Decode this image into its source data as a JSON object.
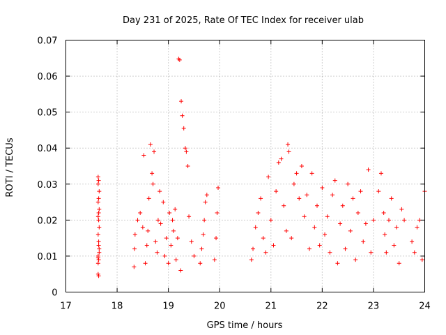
{
  "chart_data": {
    "type": "scatter",
    "title": "Day 231 of 2025, Rate Of TEC Index for receiver ulab",
    "xlabel": "GPS time / hours",
    "ylabel": "ROTI / TECUs",
    "xlim": [
      17,
      24
    ],
    "ylim": [
      0,
      0.07
    ],
    "xticks": [
      17,
      18,
      19,
      20,
      21,
      22,
      23,
      24
    ],
    "yticks": [
      0,
      0.01,
      0.02,
      0.03,
      0.04,
      0.05,
      0.06,
      0.07
    ],
    "xtick_labels": [
      "17",
      "18",
      "19",
      "20",
      "21",
      "22",
      "23",
      "24"
    ],
    "ytick_labels": [
      "0",
      "0.01",
      "0.02",
      "0.03",
      "0.04",
      "0.05",
      "0.06",
      "0.07"
    ],
    "grid": true,
    "marker": "+",
    "color": "#ff0000",
    "series": [
      {
        "x": [
          17.63,
          17.63,
          17.64,
          17.63,
          17.65,
          17.64,
          17.63,
          17.65,
          17.64,
          17.63,
          17.64,
          17.65,
          17.63,
          17.64,
          17.65,
          17.63,
          17.64,
          17.63,
          17.65,
          17.64,
          17.63,
          17.64,
          18.33,
          18.34,
          18.35,
          18.4,
          18.45,
          18.5,
          18.52,
          18.55,
          18.58,
          18.6,
          18.62,
          18.65,
          18.68,
          18.7,
          18.72,
          18.75,
          18.78,
          18.8,
          18.83,
          18.85,
          18.9,
          18.93,
          18.96,
          19.0,
          19.02,
          19.05,
          19.08,
          19.1,
          19.13,
          19.15,
          19.18,
          19.2,
          19.22,
          19.24,
          19.25,
          19.27,
          19.3,
          19.33,
          19.35,
          19.38,
          19.4,
          19.45,
          19.5,
          19.62,
          19.65,
          19.68,
          19.7,
          19.72,
          19.75,
          19.9,
          19.93,
          19.95,
          19.97,
          20.62,
          20.65,
          20.7,
          20.75,
          20.8,
          20.85,
          20.9,
          20.95,
          21.0,
          21.05,
          21.1,
          21.15,
          21.2,
          21.25,
          21.3,
          21.33,
          21.35,
          21.4,
          21.45,
          21.5,
          21.55,
          21.6,
          21.65,
          21.7,
          21.75,
          21.8,
          21.85,
          21.9,
          21.95,
          22.0,
          22.05,
          22.1,
          22.15,
          22.2,
          22.25,
          22.3,
          22.35,
          22.4,
          22.45,
          22.5,
          22.55,
          22.6,
          22.65,
          22.7,
          22.75,
          22.8,
          22.85,
          22.9,
          22.95,
          23.0,
          23.1,
          23.15,
          23.2,
          23.22,
          23.25,
          23.3,
          23.35,
          23.4,
          23.45,
          23.5,
          23.55,
          23.6,
          23.75,
          23.8,
          23.85,
          23.9,
          23.95,
          24.0
        ],
        "y": [
          0.005,
          0.008,
          0.009,
          0.01,
          0.012,
          0.014,
          0.016,
          0.018,
          0.02,
          0.021,
          0.022,
          0.023,
          0.025,
          0.026,
          0.028,
          0.03,
          0.031,
          0.032,
          0.011,
          0.0045,
          0.0095,
          0.013,
          0.007,
          0.012,
          0.016,
          0.02,
          0.022,
          0.018,
          0.038,
          0.008,
          0.013,
          0.017,
          0.026,
          0.041,
          0.033,
          0.03,
          0.039,
          0.014,
          0.011,
          0.02,
          0.028,
          0.019,
          0.025,
          0.01,
          0.015,
          0.008,
          0.022,
          0.013,
          0.02,
          0.017,
          0.023,
          0.009,
          0.015,
          0.0648,
          0.0645,
          0.006,
          0.053,
          0.049,
          0.0455,
          0.04,
          0.039,
          0.035,
          0.021,
          0.014,
          0.01,
          0.008,
          0.012,
          0.016,
          0.02,
          0.025,
          0.027,
          0.009,
          0.015,
          0.022,
          0.029,
          0.009,
          0.012,
          0.018,
          0.022,
          0.026,
          0.015,
          0.011,
          0.032,
          0.02,
          0.013,
          0.028,
          0.036,
          0.037,
          0.024,
          0.017,
          0.041,
          0.039,
          0.015,
          0.03,
          0.033,
          0.026,
          0.035,
          0.021,
          0.027,
          0.012,
          0.033,
          0.018,
          0.024,
          0.013,
          0.029,
          0.016,
          0.021,
          0.011,
          0.027,
          0.031,
          0.008,
          0.019,
          0.024,
          0.012,
          0.03,
          0.017,
          0.026,
          0.009,
          0.022,
          0.028,
          0.014,
          0.019,
          0.034,
          0.011,
          0.02,
          0.028,
          0.033,
          0.022,
          0.016,
          0.011,
          0.02,
          0.026,
          0.013,
          0.018,
          0.008,
          0.023,
          0.02,
          0.014,
          0.011,
          0.018,
          0.02,
          0.009,
          0.028
        ]
      }
    ]
  }
}
